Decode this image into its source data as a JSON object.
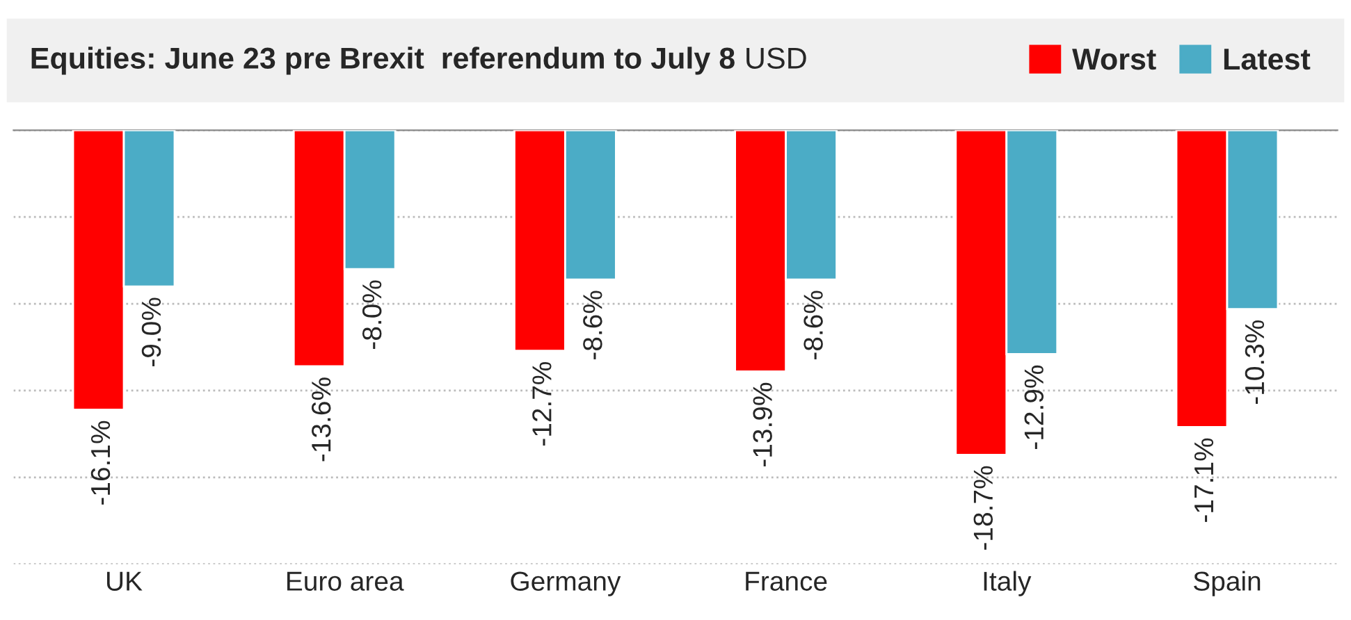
{
  "chart_data": {
    "type": "bar",
    "title": "Equities: June 23 pre Brexit  referendum to July 8",
    "subtitle": "USD",
    "categories": [
      "UK",
      "Euro area",
      "Germany",
      "France",
      "Italy",
      "Spain"
    ],
    "series": [
      {
        "name": "Worst",
        "color": "#ff0000",
        "values": [
          -16.1,
          -13.6,
          -12.7,
          -13.9,
          -18.7,
          -17.1
        ],
        "value_labels": [
          "-16.1%",
          "-13.6%",
          "-12.7%",
          "-13.9%",
          "-18.7%",
          "-17.1%"
        ]
      },
      {
        "name": "Latest",
        "color": "#4bacc6",
        "values": [
          -9.0,
          -8.0,
          -8.6,
          -8.6,
          -12.9,
          -10.3
        ],
        "value_labels": [
          "-9.0%",
          "-8.0%",
          "-8.6%",
          "-8.6%",
          "-12.9%",
          "-10.3%"
        ]
      }
    ],
    "ylim": [
      -25,
      0
    ],
    "yticks": [
      {
        "value": 0,
        "label": null
      },
      {
        "value": -5,
        "label": null
      },
      {
        "value": -10,
        "label": null
      },
      {
        "value": -15,
        "label": null
      },
      {
        "value": -20,
        "label": null
      },
      {
        "value": -25,
        "label": null
      }
    ],
    "grid": "y",
    "legend": "top right",
    "tick_labels": "x"
  }
}
